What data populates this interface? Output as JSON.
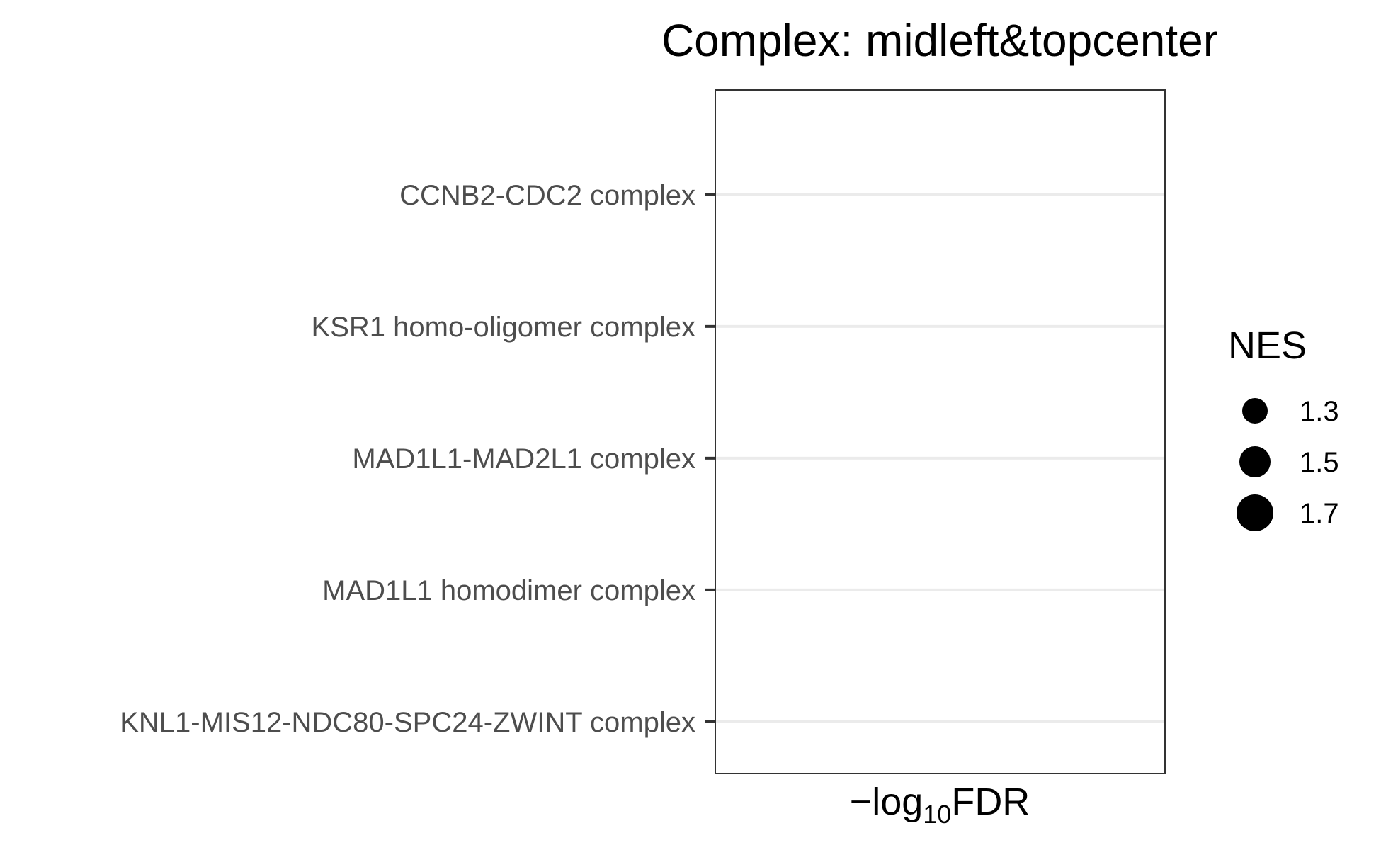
{
  "chart_data": {
    "type": "scatter",
    "title": "Complex: midleft&topcenter",
    "xlabel": {
      "prefix": "−log",
      "subscript": "10",
      "suffix": "FDR"
    },
    "ylabel": "",
    "categories": [
      "CCNB2-CDC2 complex",
      "KSR1 homo-oligomer complex",
      "MAD1L1-MAD2L1 complex",
      "MAD1L1 homodimer complex",
      "KNL1-MIS12-NDC80-SPC24-ZWINT complex"
    ],
    "points": [],
    "grid": true,
    "legend": {
      "title": "NES",
      "position": "right",
      "items": [
        {
          "label": "1.3",
          "value": 1.3
        },
        {
          "label": "1.5",
          "value": 1.5
        },
        {
          "label": "1.7",
          "value": 1.7
        }
      ]
    },
    "colors": {
      "gridline": "#ebebeb",
      "panel_border": "#333333",
      "tick_text": "#4d4d4d",
      "point": "#000000"
    }
  }
}
